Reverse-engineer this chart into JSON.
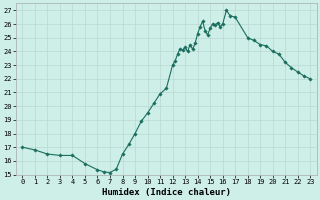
{
  "xlabel": "Humidex (Indice chaleur)",
  "background_color": "#ceeee8",
  "grid_color": "#b8d8d0",
  "line_color": "#1a6e5e",
  "marker_color": "#1a6e5e",
  "xlim": [
    -0.5,
    23.5
  ],
  "ylim": [
    15,
    27.5
  ],
  "yticks": [
    15,
    16,
    17,
    18,
    19,
    20,
    21,
    22,
    23,
    24,
    25,
    26,
    27
  ],
  "xticks": [
    0,
    1,
    2,
    3,
    4,
    5,
    6,
    7,
    8,
    9,
    10,
    11,
    12,
    13,
    14,
    15,
    16,
    17,
    18,
    19,
    20,
    21,
    22,
    23
  ],
  "x": [
    0,
    1,
    2,
    3,
    4,
    5,
    6,
    6.5,
    7,
    7.5,
    8,
    8.5,
    9,
    9.5,
    10,
    10.5,
    11,
    11.5,
    12,
    12.2,
    12.4,
    12.6,
    12.8,
    13,
    13.2,
    13.4,
    13.6,
    13.8,
    14,
    14.2,
    14.4,
    14.6,
    14.8,
    15,
    15.2,
    15.4,
    15.6,
    15.8,
    16,
    16.3,
    16.6,
    17,
    18,
    18.5,
    19,
    19.5,
    20,
    20.5,
    21,
    21.5,
    22,
    22.5,
    23
  ],
  "y": [
    17.0,
    16.8,
    16.5,
    16.4,
    16.4,
    15.8,
    15.35,
    15.2,
    15.15,
    15.4,
    16.5,
    17.2,
    18.0,
    18.9,
    19.5,
    20.2,
    20.9,
    21.3,
    23.0,
    23.3,
    23.8,
    24.2,
    24.1,
    24.3,
    24.0,
    24.5,
    24.15,
    24.6,
    25.3,
    25.8,
    26.2,
    25.5,
    25.2,
    25.7,
    26.0,
    25.9,
    26.1,
    25.8,
    26.0,
    27.0,
    26.6,
    26.5,
    25.0,
    24.8,
    24.5,
    24.4,
    24.0,
    23.8,
    23.2,
    22.8,
    22.5,
    22.2,
    22.0
  ]
}
